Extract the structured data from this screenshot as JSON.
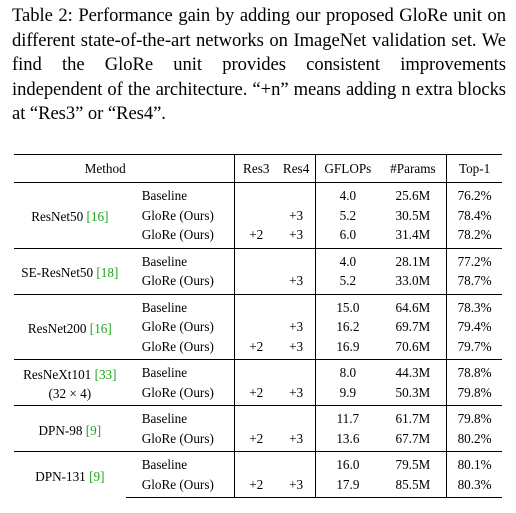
{
  "caption": "Table 2: Performance gain by adding our proposed GloRe unit on different state-of-the-art networks on ImageNet validation set. We find the GloRe unit provides consistent improvements independent of the architecture. “+n” means adding n extra blocks at “Res3” or “Res4”.",
  "header": {
    "method": "Method",
    "res3": "Res3",
    "res4": "Res4",
    "gflops": "GFLOPs",
    "params": "#Params",
    "top1": "Top-1"
  },
  "groups": [
    {
      "net": "ResNet50",
      "cite": "[16]",
      "rows": [
        {
          "variant": "Baseline",
          "res3": "",
          "res4": "",
          "gflops": "4.0",
          "params": "25.6M",
          "top1": "76.2%",
          "bold": false
        },
        {
          "variant": "GloRe (Ours)",
          "res3": "",
          "res4": "+3",
          "gflops": "5.2",
          "params": "30.5M",
          "top1": "78.4%",
          "bold": true
        },
        {
          "variant": "GloRe (Ours)",
          "res3": "+2",
          "res4": "+3",
          "gflops": "6.0",
          "params": "31.4M",
          "top1": "78.2%",
          "bold": false
        }
      ]
    },
    {
      "net": "SE-ResNet50",
      "cite": "[18]",
      "rows": [
        {
          "variant": "Baseline",
          "res3": "",
          "res4": "",
          "gflops": "4.0",
          "params": "28.1M",
          "top1": "77.2%",
          "bold": false
        },
        {
          "variant": "GloRe (Ours)",
          "res3": "",
          "res4": "+3",
          "gflops": "5.2",
          "params": "33.0M",
          "top1": "78.7%",
          "bold": true
        }
      ]
    },
    {
      "net": "ResNet200",
      "cite": "[16]",
      "rows": [
        {
          "variant": "Baseline",
          "res3": "",
          "res4": "",
          "gflops": "15.0",
          "params": "64.6M",
          "top1": "78.3%",
          "bold": false
        },
        {
          "variant": "GloRe (Ours)",
          "res3": "",
          "res4": "+3",
          "gflops": "16.2",
          "params": "69.7M",
          "top1": "79.4%",
          "bold": false
        },
        {
          "variant": "GloRe (Ours)",
          "res3": "+2",
          "res4": "+3",
          "gflops": "16.9",
          "params": "70.6M",
          "top1": "79.7%",
          "bold": true
        }
      ]
    },
    {
      "net": "ResNeXt101",
      "cite": "[33]",
      "net_sub": "(32 × 4)",
      "rows": [
        {
          "variant": "Baseline",
          "res3": "",
          "res4": "",
          "gflops": "8.0",
          "params": "44.3M",
          "top1": "78.8%",
          "bold": false
        },
        {
          "variant": "GloRe (Ours)",
          "res3": "+2",
          "res4": "+3",
          "gflops": "9.9",
          "params": "50.3M",
          "top1": "79.8%",
          "bold": true
        }
      ]
    },
    {
      "net": "DPN-98",
      "cite": "[9]",
      "rows": [
        {
          "variant": "Baseline",
          "res3": "",
          "res4": "",
          "gflops": "11.7",
          "params": "61.7M",
          "top1": "79.8%",
          "bold": false
        },
        {
          "variant": "GloRe (Ours)",
          "res3": "+2",
          "res4": "+3",
          "gflops": "13.6",
          "params": "67.7M",
          "top1": "80.2%",
          "bold": true
        }
      ]
    },
    {
      "net": "DPN-131",
      "cite": "[9]",
      "rows": [
        {
          "variant": "Baseline",
          "res3": "",
          "res4": "",
          "gflops": "16.0",
          "params": "79.5M",
          "top1": "80.1%",
          "bold": false
        },
        {
          "variant": "GloRe (Ours)",
          "res3": "+2",
          "res4": "+3",
          "gflops": "17.9",
          "params": "85.5M",
          "top1": "80.3%",
          "bold": true
        }
      ]
    }
  ],
  "colors": {
    "citation": "#1aa51a"
  }
}
